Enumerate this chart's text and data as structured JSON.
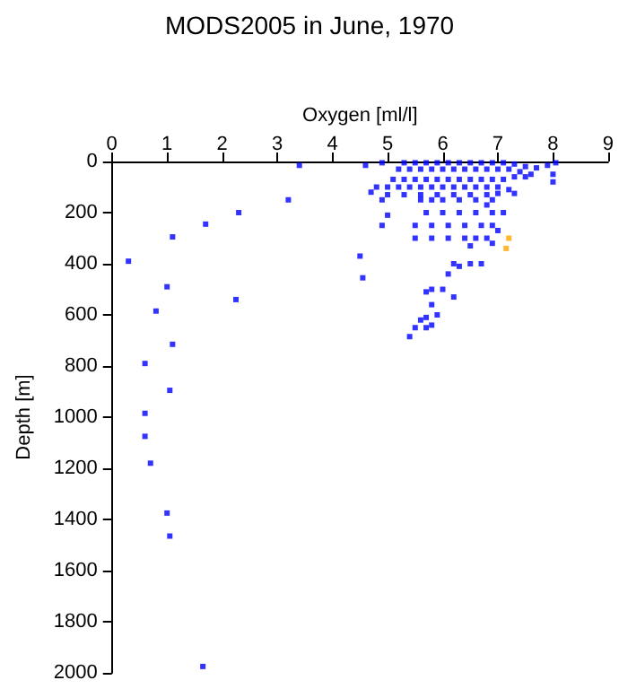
{
  "chart_data": {
    "type": "scatter",
    "title": "MODS2005 in June, 1970",
    "xlabel": "Oxygen [ml/l]",
    "ylabel": "Depth [m]",
    "xlim": [
      0,
      9
    ],
    "xticks": [
      0,
      1,
      2,
      3,
      4,
      5,
      6,
      7,
      8,
      9
    ],
    "ylim": [
      2000,
      0
    ],
    "yticks": [
      0,
      200,
      400,
      600,
      800,
      1000,
      1200,
      1400,
      1600,
      1800,
      2000
    ],
    "grid": false,
    "marker": "square",
    "series": [
      {
        "color": "#0000ff",
        "x": [
          3.4,
          4.6,
          4.9,
          5.3,
          5.5,
          5.7,
          5.9,
          6.1,
          6.3,
          6.5,
          6.7,
          6.9,
          7.1,
          7.3,
          7.5,
          7.7,
          7.9,
          8.05,
          5.2,
          5.4,
          5.6,
          5.8,
          6.0,
          6.2,
          6.4,
          6.6,
          6.8,
          7.0,
          7.2,
          7.4,
          7.6,
          8.0,
          5.1,
          5.3,
          5.5,
          5.7,
          5.9,
          6.1,
          6.3,
          6.5,
          6.7,
          6.9,
          7.1,
          7.3,
          7.5,
          8.0,
          4.8,
          5.0,
          5.2,
          5.4,
          5.6,
          5.8,
          6.0,
          6.2,
          6.4,
          6.6,
          6.8,
          7.0,
          7.2,
          4.7,
          5.0,
          5.3,
          5.6,
          5.9,
          6.2,
          6.5,
          6.8,
          7.0,
          7.3,
          3.2,
          4.9,
          5.6,
          5.8,
          6.0,
          6.3,
          6.6,
          6.9,
          6.8,
          5.0,
          5.7,
          6.0,
          6.3,
          6.6,
          6.9,
          7.1,
          4.9,
          5.5,
          5.8,
          6.1,
          6.4,
          6.7,
          6.9,
          7.0,
          5.5,
          5.8,
          6.1,
          6.4,
          6.6,
          6.8,
          6.9,
          6.5,
          6.2,
          6.3,
          6.5,
          6.7,
          6.1,
          6.0,
          5.8,
          5.7,
          6.2,
          5.8,
          5.9,
          5.7,
          5.6,
          5.8,
          5.5,
          5.7,
          5.4,
          1.7,
          2.3,
          1.1,
          0.3,
          1.0,
          2.25,
          0.8,
          1.1,
          0.6,
          1.05,
          0.6,
          0.6,
          0.7,
          1.0,
          1.05,
          1.65,
          4.5,
          4.55
        ],
        "values": [
          15,
          15,
          5,
          5,
          5,
          5,
          5,
          5,
          5,
          5,
          5,
          5,
          5,
          10,
          20,
          25,
          15,
          5,
          30,
          30,
          30,
          30,
          30,
          30,
          30,
          30,
          30,
          30,
          30,
          40,
          50,
          50,
          70,
          70,
          70,
          70,
          70,
          70,
          70,
          70,
          70,
          70,
          70,
          60,
          60,
          80,
          100,
          100,
          100,
          100,
          100,
          100,
          100,
          100,
          100,
          100,
          100,
          100,
          110,
          120,
          130,
          130,
          130,
          130,
          130,
          130,
          130,
          125,
          125,
          150,
          150,
          150,
          150,
          150,
          150,
          150,
          150,
          170,
          210,
          200,
          200,
          200,
          200,
          200,
          200,
          250,
          250,
          250,
          250,
          250,
          250,
          250,
          270,
          300,
          300,
          300,
          300,
          300,
          300,
          320,
          330,
          400,
          410,
          400,
          400,
          440,
          500,
          500,
          510,
          530,
          560,
          600,
          610,
          620,
          640,
          650,
          650,
          685,
          245,
          200,
          295,
          390,
          490,
          540,
          585,
          715,
          790,
          895,
          985,
          1075,
          1180,
          1375,
          1465,
          1975,
          370,
          455
        ]
      },
      {
        "color": "#ffa500",
        "x": [
          7.2,
          7.15
        ],
        "values": [
          300,
          340
        ]
      }
    ]
  }
}
